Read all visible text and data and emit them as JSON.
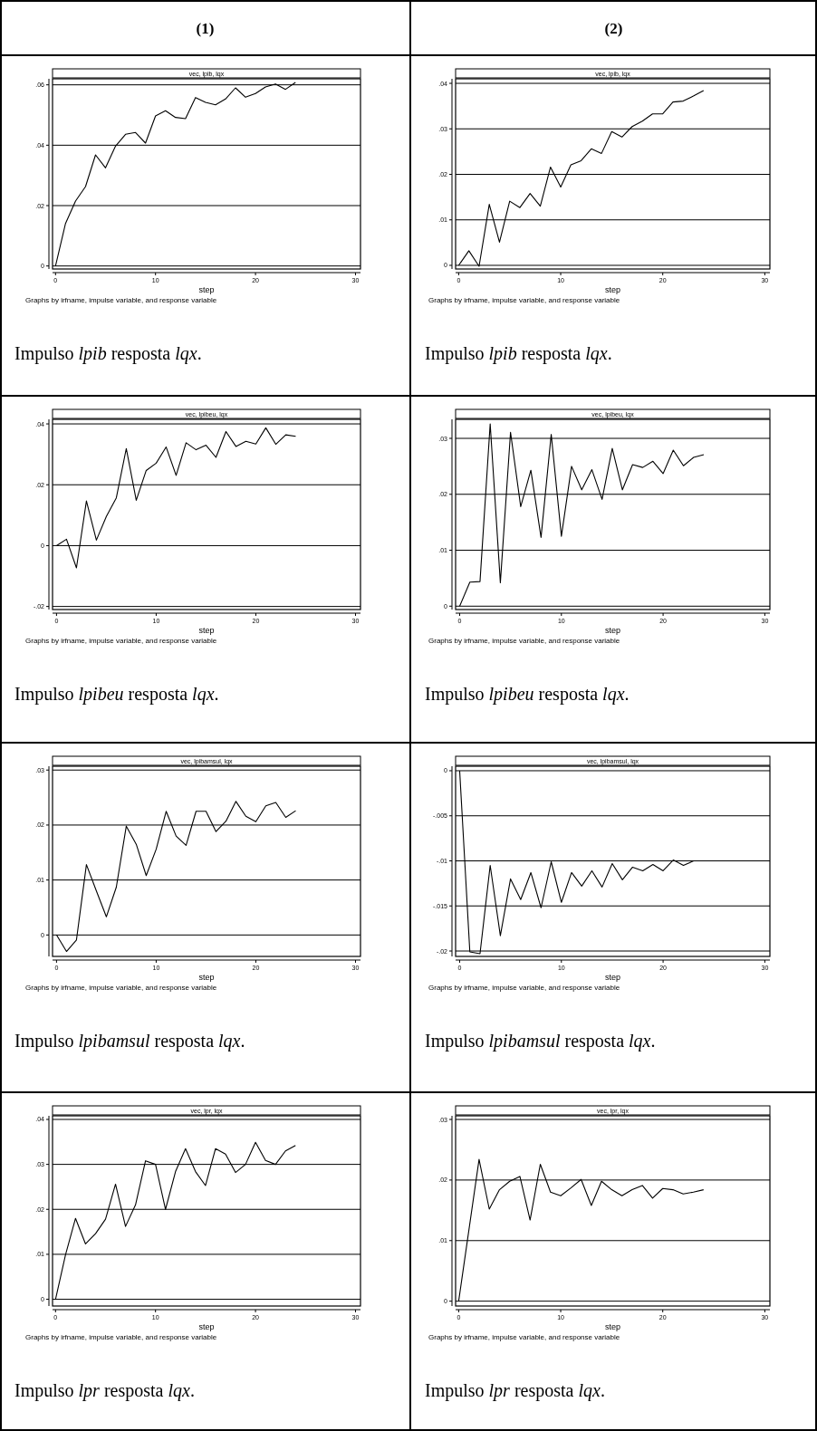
{
  "chart_data": [
    {
      "type": "line",
      "title": "(1)",
      "subtitle": "vec, lpib, lqx",
      "xlabel": "step",
      "annotations": [
        "Graphs by irfname, impulse variable, and response variable",
        "Impulso lpib resposta lqx."
      ],
      "x": [
        0,
        1,
        2,
        3,
        4,
        5,
        6,
        7,
        8,
        9,
        10,
        11,
        12,
        13,
        14,
        15,
        16,
        17,
        18,
        19,
        20,
        21,
        22,
        23,
        24
      ],
      "color": "#000000",
      "values": [
        0,
        0.0141,
        0.0215,
        0.0263,
        0.0368,
        0.0325,
        0.0397,
        0.0436,
        0.0442,
        0.0407,
        0.0497,
        0.0514,
        0.0492,
        0.0488,
        0.0558,
        0.0542,
        0.0534,
        0.0553,
        0.059,
        0.0559,
        0.0571,
        0.0593,
        0.0603,
        0.0585,
        0.0608
      ],
      "xlim": [
        -0.3,
        30.5
      ],
      "xticks": [
        0,
        10,
        20,
        30
      ],
      "ylim": [
        -0.001,
        0.062
      ],
      "yticks": [
        {
          "value": 0,
          "label": "0"
        },
        {
          "value": 0.02,
          "label": ".02"
        },
        {
          "value": 0.04,
          "label": ".04"
        },
        {
          "value": 0.06,
          "label": ".06"
        }
      ],
      "grid": "y"
    },
    {
      "type": "line",
      "title": "(2)",
      "subtitle": "vec, lpib, lqx",
      "xlabel": "step",
      "annotations": [
        "Graphs by irfname, impulse variable, and response variable",
        "Impulso lpib resposta lqx."
      ],
      "x": [
        0,
        1,
        2,
        3,
        4,
        5,
        6,
        7,
        8,
        9,
        10,
        11,
        12,
        13,
        14,
        15,
        16,
        17,
        18,
        19,
        20,
        21,
        22,
        23,
        24
      ],
      "color": "#000000",
      "values": [
        0,
        0.0032,
        -0.0002,
        0.0134,
        0.0051,
        0.0141,
        0.0127,
        0.0158,
        0.013,
        0.0216,
        0.0172,
        0.0221,
        0.023,
        0.0256,
        0.0246,
        0.0294,
        0.0282,
        0.0305,
        0.0317,
        0.0333,
        0.0333,
        0.0359,
        0.0361,
        0.0372,
        0.0384
      ],
      "xlim": [
        -0.3,
        30.5
      ],
      "xticks": [
        0,
        10,
        20,
        30
      ],
      "ylim": [
        -0.0008,
        0.041
      ],
      "yticks": [
        {
          "value": 0,
          "label": "0"
        },
        {
          "value": 0.01,
          "label": ".01"
        },
        {
          "value": 0.02,
          "label": ".02"
        },
        {
          "value": 0.03,
          "label": ".03"
        },
        {
          "value": 0.04,
          "label": ".04"
        }
      ],
      "grid": "y"
    },
    {
      "type": "line",
      "subtitle": "vec, lpibeu, lqx",
      "xlabel": "step",
      "annotations": [
        "Graphs by irfname, impulse variable, and response variable",
        "Impulso lpibeu resposta lqx."
      ],
      "x": [
        0,
        1,
        2,
        3,
        4,
        5,
        6,
        7,
        8,
        9,
        10,
        11,
        12,
        13,
        14,
        15,
        16,
        17,
        18,
        19,
        20,
        21,
        22,
        23,
        24
      ],
      "color": "#000000",
      "values": [
        0,
        0.0021,
        -0.0073,
        0.0147,
        0.0018,
        0.0096,
        0.0157,
        0.0319,
        0.0149,
        0.0247,
        0.0271,
        0.0324,
        0.0231,
        0.0338,
        0.0315,
        0.033,
        0.029,
        0.0375,
        0.0326,
        0.0343,
        0.0334,
        0.0387,
        0.0333,
        0.0364,
        0.0359
      ],
      "xlim": [
        -0.4,
        30.5
      ],
      "xticks": [
        0,
        10,
        20,
        30
      ],
      "ylim": [
        -0.021,
        0.0415
      ],
      "yticks": [
        {
          "value": -0.02,
          "label": "-.02"
        },
        {
          "value": 0,
          "label": "0"
        },
        {
          "value": 0.02,
          "label": ".02"
        },
        {
          "value": 0.04,
          "label": ".04"
        }
      ],
      "grid": "y"
    },
    {
      "type": "line",
      "subtitle": "vec, lpibeu, lqx",
      "xlabel": "step",
      "annotations": [
        "Graphs by irfname, impulse variable, and response variable",
        "Impulso lpibeu resposta lqx."
      ],
      "x": [
        0,
        1,
        2,
        3,
        4,
        5,
        6,
        7,
        8,
        9,
        10,
        11,
        12,
        13,
        14,
        15,
        16,
        17,
        18,
        19,
        20,
        21,
        22,
        23,
        24
      ],
      "color": "#000000",
      "values": [
        0,
        0.0043,
        0.0044,
        0.0326,
        0.0042,
        0.0311,
        0.0178,
        0.0243,
        0.0123,
        0.0307,
        0.0125,
        0.025,
        0.0208,
        0.0244,
        0.0191,
        0.0282,
        0.0208,
        0.0253,
        0.0248,
        0.0259,
        0.0237,
        0.0279,
        0.0251,
        0.0266,
        0.0271
      ],
      "xlim": [
        -0.4,
        30.5
      ],
      "xticks": [
        0,
        10,
        20,
        30
      ],
      "ylim": [
        -0.0006,
        0.0334
      ],
      "yticks": [
        {
          "value": 0,
          "label": "0"
        },
        {
          "value": 0.01,
          "label": ".01"
        },
        {
          "value": 0.02,
          "label": ".02"
        },
        {
          "value": 0.03,
          "label": ".03"
        }
      ],
      "grid": "y"
    },
    {
      "type": "line",
      "subtitle": "vec, lpibamsul, lqx",
      "xlabel": "step",
      "annotations": [
        "Graphs by irfname, impulse variable, and response variable",
        "Impulso lpibamsul resposta lqx."
      ],
      "x": [
        0,
        1,
        2,
        3,
        4,
        5,
        6,
        7,
        8,
        9,
        10,
        11,
        12,
        13,
        14,
        15,
        16,
        17,
        18,
        19,
        20,
        21,
        22,
        23,
        24
      ],
      "color": "#000000",
      "values": [
        0,
        -0.003,
        -0.0009,
        0.0128,
        0.008,
        0.0033,
        0.0087,
        0.0198,
        0.0165,
        0.0108,
        0.0156,
        0.0225,
        0.018,
        0.0163,
        0.0225,
        0.0225,
        0.0188,
        0.0207,
        0.0243,
        0.0216,
        0.0206,
        0.0235,
        0.0241,
        0.0214,
        0.0226
      ],
      "xlim": [
        -0.4,
        30.5
      ],
      "xticks": [
        0,
        10,
        20,
        30
      ],
      "ylim": [
        -0.0039,
        0.0307
      ],
      "yticks": [
        {
          "value": 0,
          "label": "0"
        },
        {
          "value": 0.01,
          "label": ".01"
        },
        {
          "value": 0.02,
          "label": ".02"
        },
        {
          "value": 0.03,
          "label": ".03"
        }
      ],
      "grid": "y"
    },
    {
      "type": "line",
      "subtitle": "vec, lpibamsul, lqx",
      "xlabel": "step",
      "annotations": [
        "Graphs by irfname, impulse variable, and response variable",
        "Impulso lpibamsul resposta lqx."
      ],
      "x": [
        0,
        1,
        2,
        3,
        4,
        5,
        6,
        7,
        8,
        9,
        10,
        11,
        12,
        13,
        14,
        15,
        16,
        17,
        18,
        19,
        20,
        21,
        22,
        23,
        24
      ],
      "color": "#000000",
      "values": [
        0,
        -0.0201,
        -0.0203,
        -0.0105,
        -0.0183,
        -0.012,
        -0.0143,
        -0.0113,
        -0.0152,
        -0.0101,
        -0.0146,
        -0.0113,
        -0.0128,
        -0.0111,
        -0.0129,
        -0.0103,
        -0.0121,
        -0.0107,
        -0.0111,
        -0.0104,
        -0.0111,
        -0.0099,
        -0.0105,
        -0.01,
        -0.01
      ],
      "xlim": [
        -0.4,
        30.5
      ],
      "xticks": [
        0,
        10,
        20,
        30
      ],
      "ylim": [
        -0.0206,
        0.0005
      ],
      "yticks": [
        {
          "value": -0.02,
          "label": "-.02"
        },
        {
          "value": -0.015,
          "label": "-.015"
        },
        {
          "value": -0.01,
          "label": "-.01"
        },
        {
          "value": -0.005,
          "label": "-.005"
        },
        {
          "value": 0,
          "label": "0"
        }
      ],
      "grid": "y"
    },
    {
      "type": "line",
      "subtitle": "vec, lpr, lqx",
      "xlabel": "step",
      "annotations": [
        "Graphs by irfname, impulse variable, and response variable",
        "Impulso lpr resposta lqx."
      ],
      "x": [
        0,
        1,
        2,
        3,
        4,
        5,
        6,
        7,
        8,
        9,
        10,
        11,
        12,
        13,
        14,
        15,
        16,
        17,
        18,
        19,
        20,
        21,
        22,
        23,
        24
      ],
      "color": "#000000",
      "values": [
        0,
        0.0099,
        0.018,
        0.0123,
        0.0146,
        0.0178,
        0.0256,
        0.0162,
        0.021,
        0.0308,
        0.03,
        0.02,
        0.0284,
        0.0335,
        0.0284,
        0.0253,
        0.0335,
        0.0323,
        0.0282,
        0.03,
        0.0349,
        0.0309,
        0.03,
        0.033,
        0.0342
      ],
      "xlim": [
        -0.3,
        30.5
      ],
      "xticks": [
        0,
        10,
        20,
        30
      ],
      "ylim": [
        -0.0015,
        0.0408
      ],
      "yticks": [
        {
          "value": 0,
          "label": "0"
        },
        {
          "value": 0.01,
          "label": ".01"
        },
        {
          "value": 0.02,
          "label": ".02"
        },
        {
          "value": 0.03,
          "label": ".03"
        },
        {
          "value": 0.04,
          "label": ".04"
        }
      ],
      "grid": "y"
    },
    {
      "type": "line",
      "subtitle": "vec, lpr, lqx",
      "xlabel": "step",
      "annotations": [
        "Graphs by irfname, impulse variable, and response variable",
        "Impulso lpr resposta lqx."
      ],
      "x": [
        0,
        1,
        2,
        3,
        4,
        5,
        6,
        7,
        8,
        9,
        10,
        11,
        12,
        13,
        14,
        15,
        16,
        17,
        18,
        19,
        20,
        21,
        22,
        23,
        24
      ],
      "color": "#000000",
      "values": [
        0,
        0.0117,
        0.0234,
        0.0152,
        0.0184,
        0.0198,
        0.0206,
        0.0134,
        0.0226,
        0.018,
        0.0174,
        0.0187,
        0.0201,
        0.0158,
        0.0198,
        0.0184,
        0.0174,
        0.0184,
        0.0191,
        0.017,
        0.0186,
        0.0184,
        0.0177,
        0.018,
        0.0184
      ],
      "xlim": [
        -0.3,
        30.5
      ],
      "xticks": [
        0,
        10,
        20,
        30
      ],
      "ylim": [
        -0.0008,
        0.0306
      ],
      "yticks": [
        {
          "value": 0,
          "label": "0"
        },
        {
          "value": 0.01,
          "label": ".01"
        },
        {
          "value": 0.02,
          "label": ".02"
        },
        {
          "value": 0.03,
          "label": ".03"
        }
      ],
      "grid": "y"
    }
  ]
}
